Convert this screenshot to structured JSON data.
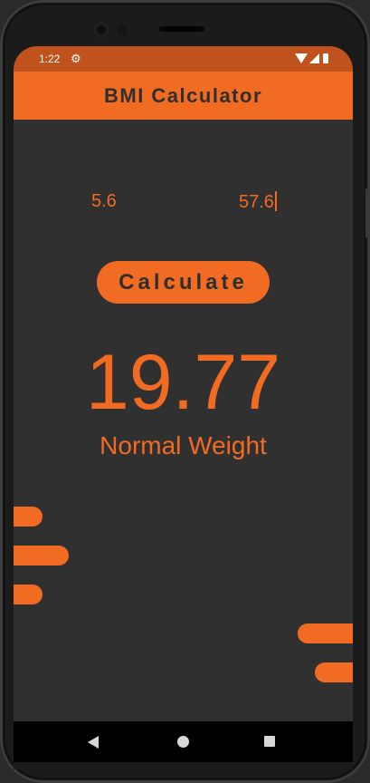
{
  "status_bar": {
    "time": "1:22",
    "settings_icon": "gear-icon",
    "right_icons": [
      "wifi-icon",
      "signal-icon",
      "battery-icon"
    ]
  },
  "app_bar": {
    "title": "BMI Calculator"
  },
  "inputs": {
    "height_value": "5.6",
    "weight_value": "57.6"
  },
  "calculate_button": {
    "label": "Calculate"
  },
  "result": {
    "bmi": "19.77",
    "category": "Normal Weight"
  },
  "nav_bar": {
    "icons": [
      "back-icon",
      "home-icon",
      "recents-icon"
    ]
  },
  "colors": {
    "accent": "#f26b22",
    "status_bar": "#c0531d",
    "background": "#303030",
    "title_text": "#2f2f2f"
  }
}
